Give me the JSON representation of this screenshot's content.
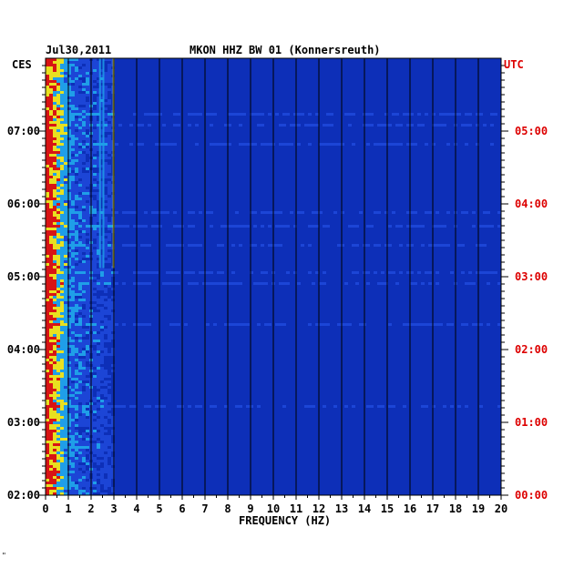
{
  "header": {
    "date": "Jul30,2011",
    "title": "MKON HHZ BW 01 (Konnersreuth)"
  },
  "left_zone_label": "CES",
  "right_zone_label": "UTC",
  "footer_mark": "\"",
  "chart_data": {
    "type": "heatmap",
    "title": "MKON HHZ BW 01 (Konnersreuth)",
    "xlabel": "FREQUENCY (HZ)",
    "ylabel": "",
    "xlim": [
      0,
      20
    ],
    "x_ticks": [
      "0",
      "1",
      "2",
      "3",
      "4",
      "5",
      "6",
      "7",
      "8",
      "9",
      "10",
      "11",
      "12",
      "13",
      "14",
      "15",
      "16",
      "17",
      "18",
      "19",
      "20"
    ],
    "y_ticks_left": [
      "07:00",
      "06:00",
      "05:00",
      "04:00",
      "03:00",
      "02:00"
    ],
    "y_ticks_right": [
      "05:00",
      "04:00",
      "03:00",
      "02:00",
      "01:00",
      "00:00"
    ],
    "colors": {
      "background": "#0d2fb8",
      "low": "#1c45d6",
      "mid": "#1f9ee8",
      "high": "#e8e020",
      "peak": "#d81414",
      "grid": "#000000",
      "utc_text": "#dd0000"
    }
  }
}
